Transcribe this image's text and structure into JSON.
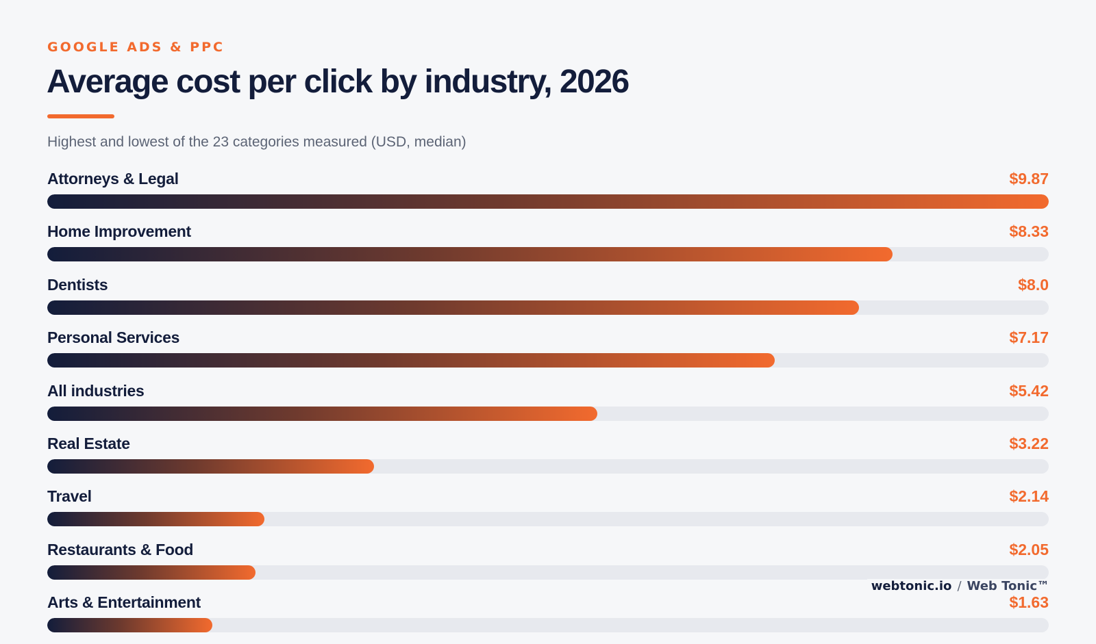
{
  "header": {
    "kicker": "GOOGLE ADS & PPC",
    "title": "Average cost per click by industry, 2026",
    "subtitle": "Highest and lowest of the 23 categories measured (USD, median)"
  },
  "footer": {
    "site": "webtonic.io",
    "separator": "/",
    "brand": "Web Tonic™"
  },
  "colors": {
    "accent": "#f26a2e",
    "navy": "#131d3b",
    "track": "#e7e9ee",
    "background": "#f6f7f9"
  },
  "chart_data": {
    "type": "bar",
    "orientation": "horizontal",
    "title": "Average cost per click by industry, 2026",
    "subtitle": "Highest and lowest of the 23 categories measured (USD, median)",
    "categories": [
      "Attorneys & Legal",
      "Home Improvement",
      "Dentists",
      "Personal Services",
      "All industries",
      "Real Estate",
      "Travel",
      "Restaurants & Food",
      "Arts & Entertainment"
    ],
    "values": [
      9.87,
      8.33,
      8.0,
      7.17,
      5.42,
      3.22,
      2.14,
      2.05,
      1.63
    ],
    "value_labels": [
      "$9.87",
      "$8.33",
      "$8.0",
      "$7.17",
      "$5.42",
      "$3.22",
      "$2.14",
      "$2.05",
      "$1.63"
    ],
    "xlim": [
      0,
      9.87
    ],
    "grid": false
  }
}
